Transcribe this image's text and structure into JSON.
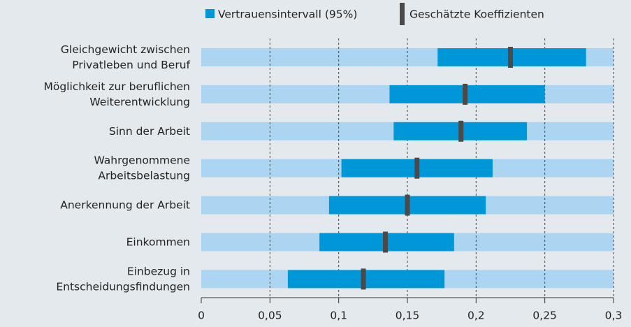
{
  "chart_data": {
    "type": "interval",
    "categories": [
      [
        "Gleichgewicht zwischen",
        "Privatleben und Beruf"
      ],
      [
        "Möglichkeit zur beruflichen",
        "Weiterentwicklung"
      ],
      [
        "Sinn der Arbeit"
      ],
      [
        "Wahrgenommene",
        "Arbeitsbelastung"
      ],
      [
        "Anerkennung der Arbeit"
      ],
      [
        "Einkommen"
      ],
      [
        "Einbezug in",
        "Entscheidungsfindungen"
      ]
    ],
    "series": [
      {
        "name": "Vertrauensintervall (95%)",
        "color": "#0097d8",
        "lower": [
          0.172,
          0.137,
          0.14,
          0.102,
          0.093,
          0.086,
          0.063
        ],
        "upper": [
          0.28,
          0.25,
          0.237,
          0.212,
          0.207,
          0.184,
          0.177
        ]
      },
      {
        "name": "Geschätzte Koeffizienten",
        "color": "#4a4a4a",
        "values": [
          0.225,
          0.192,
          0.189,
          0.157,
          0.15,
          0.134,
          0.118
        ]
      }
    ],
    "band_color": "#acd5f2",
    "xlim": [
      0,
      0.3
    ],
    "xticks": [
      0,
      {
        "value": 0.05,
        "label": "0,05"
      },
      {
        "value": 0.1,
        "label": "0,1"
      },
      {
        "value": 0.15,
        "label": "0,15"
      },
      {
        "value": 0.2,
        "label": "0,2"
      },
      {
        "value": 0.25,
        "label": "0,25"
      },
      {
        "value": 0.3,
        "label": "0,3"
      }
    ],
    "grid": true,
    "legend": "top"
  }
}
